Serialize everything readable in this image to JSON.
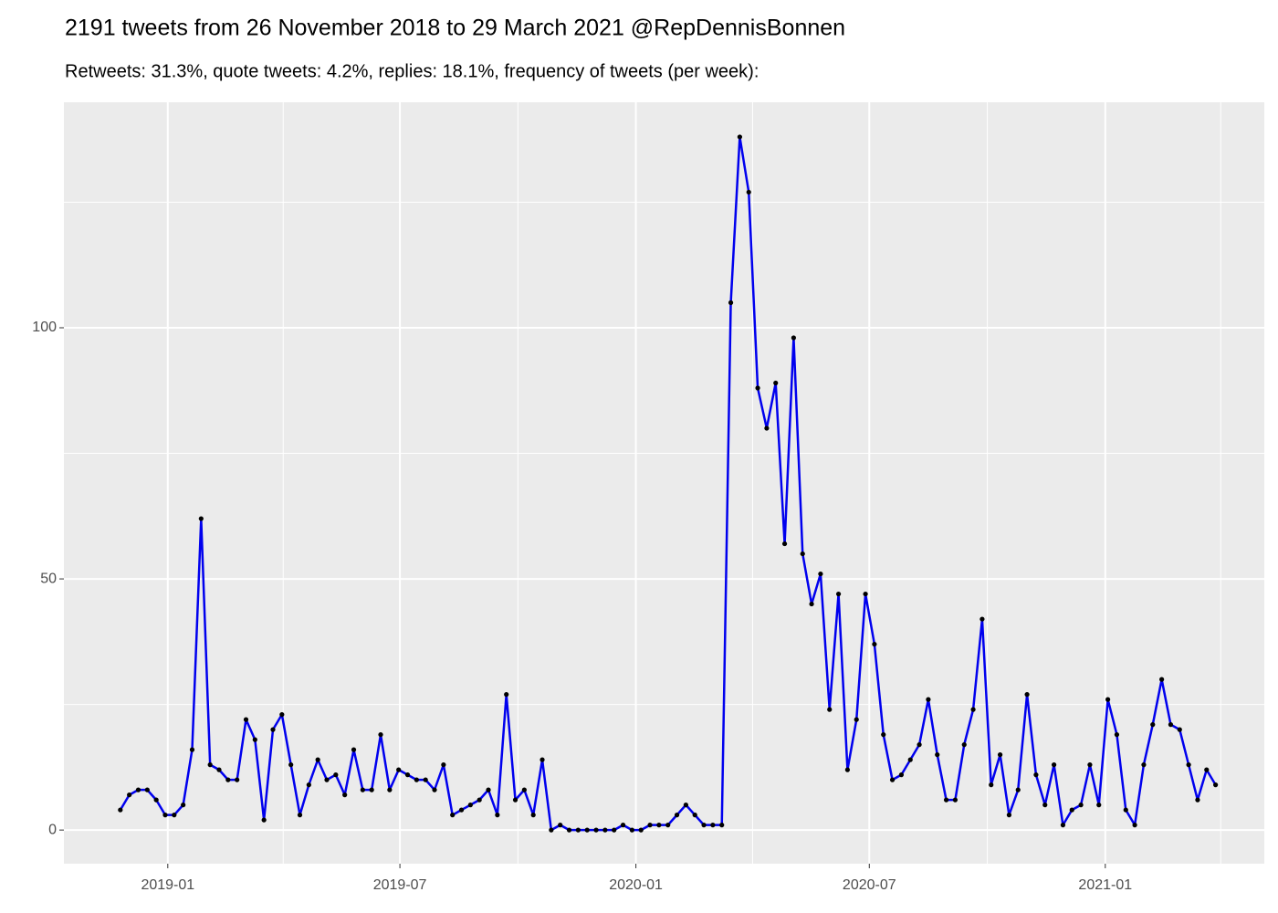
{
  "chart_data": {
    "type": "line",
    "title": "2191 tweets from 26 November 2018 to 29 March 2021 @RepDennisBonnen",
    "subtitle": "Retweets: 31.3%, quote tweets: 4.2%, replies: 18.1%, frequency of tweets (per week):",
    "x": [
      "2018-11-25",
      "2018-12-02",
      "2018-12-09",
      "2018-12-16",
      "2018-12-23",
      "2018-12-30",
      "2019-01-06",
      "2019-01-13",
      "2019-01-20",
      "2019-01-27",
      "2019-02-03",
      "2019-02-10",
      "2019-02-17",
      "2019-02-24",
      "2019-03-03",
      "2019-03-10",
      "2019-03-17",
      "2019-03-24",
      "2019-03-31",
      "2019-04-07",
      "2019-04-14",
      "2019-04-21",
      "2019-04-28",
      "2019-05-05",
      "2019-05-12",
      "2019-05-19",
      "2019-05-26",
      "2019-06-02",
      "2019-06-09",
      "2019-06-16",
      "2019-06-23",
      "2019-06-30",
      "2019-07-07",
      "2019-07-14",
      "2019-07-21",
      "2019-07-28",
      "2019-08-04",
      "2019-08-11",
      "2019-08-18",
      "2019-08-25",
      "2019-09-01",
      "2019-09-08",
      "2019-09-15",
      "2019-09-22",
      "2019-09-29",
      "2019-10-06",
      "2019-10-13",
      "2019-10-20",
      "2019-10-27",
      "2019-11-03",
      "2019-11-10",
      "2019-11-17",
      "2019-11-24",
      "2019-12-01",
      "2019-12-08",
      "2019-12-15",
      "2019-12-22",
      "2019-12-29",
      "2020-01-05",
      "2020-01-12",
      "2020-01-19",
      "2020-01-26",
      "2020-02-02",
      "2020-02-09",
      "2020-02-16",
      "2020-02-23",
      "2020-03-01",
      "2020-03-08",
      "2020-03-15",
      "2020-03-22",
      "2020-03-29",
      "2020-04-05",
      "2020-04-12",
      "2020-04-19",
      "2020-04-26",
      "2020-05-03",
      "2020-05-10",
      "2020-05-17",
      "2020-05-24",
      "2020-05-31",
      "2020-06-07",
      "2020-06-14",
      "2020-06-21",
      "2020-06-28",
      "2020-07-05",
      "2020-07-12",
      "2020-07-19",
      "2020-07-26",
      "2020-08-02",
      "2020-08-09",
      "2020-08-16",
      "2020-08-23",
      "2020-08-30",
      "2020-09-06",
      "2020-09-13",
      "2020-09-20",
      "2020-09-27",
      "2020-10-04",
      "2020-10-11",
      "2020-10-18",
      "2020-10-25",
      "2020-11-01",
      "2020-11-08",
      "2020-11-15",
      "2020-11-22",
      "2020-11-29",
      "2020-12-06",
      "2020-12-13",
      "2020-12-20",
      "2020-12-27",
      "2021-01-03",
      "2021-01-10",
      "2021-01-17",
      "2021-01-24",
      "2021-01-31",
      "2021-02-07",
      "2021-02-14",
      "2021-02-21",
      "2021-02-28",
      "2021-03-07",
      "2021-03-14",
      "2021-03-21",
      "2021-03-28"
    ],
    "series": [
      {
        "color": "#0000ee",
        "values": [
          4,
          7,
          8,
          8,
          6,
          3,
          3,
          5,
          16,
          62,
          13,
          12,
          10,
          10,
          22,
          18,
          2,
          20,
          23,
          13,
          3,
          9,
          14,
          10,
          11,
          7,
          16,
          8,
          8,
          19,
          8,
          12,
          11,
          10,
          10,
          8,
          13,
          3,
          4,
          5,
          6,
          8,
          3,
          27,
          6,
          8,
          3,
          14,
          0,
          1,
          0,
          0,
          0,
          0,
          0,
          0,
          1,
          0,
          0,
          1,
          1,
          1,
          3,
          5,
          3,
          1,
          1,
          1,
          105,
          138,
          127,
          88,
          80,
          89,
          57,
          98,
          55,
          45,
          51,
          24,
          47,
          12,
          22,
          47,
          37,
          19,
          10,
          11,
          14,
          17,
          26,
          15,
          6,
          6,
          17,
          24,
          42,
          9,
          15,
          3,
          8,
          27,
          11,
          5,
          13,
          1,
          4,
          5,
          13,
          5,
          26,
          19,
          4,
          1,
          13,
          21,
          30,
          21,
          20,
          13,
          6,
          12,
          9
        ]
      }
    ],
    "point_color": "#000000",
    "xlim": [
      "2018-10-12",
      "2021-05-05"
    ],
    "xticks": [
      {
        "value": "2019-01-01",
        "label": "2019-01"
      },
      {
        "value": "2019-07-01",
        "label": "2019-07"
      },
      {
        "value": "2020-01-01",
        "label": "2020-01"
      },
      {
        "value": "2020-07-01",
        "label": "2020-07"
      },
      {
        "value": "2021-01-01",
        "label": "2021-01"
      }
    ],
    "xminor": [
      "2018-10-01",
      "2019-04-01",
      "2019-10-01",
      "2020-04-01",
      "2020-10-01",
      "2021-04-01"
    ],
    "ylim": [
      -6.7,
      144.9
    ],
    "yticks": [
      0,
      50,
      100
    ],
    "yminor": [
      25,
      75,
      125
    ],
    "grid": true
  }
}
